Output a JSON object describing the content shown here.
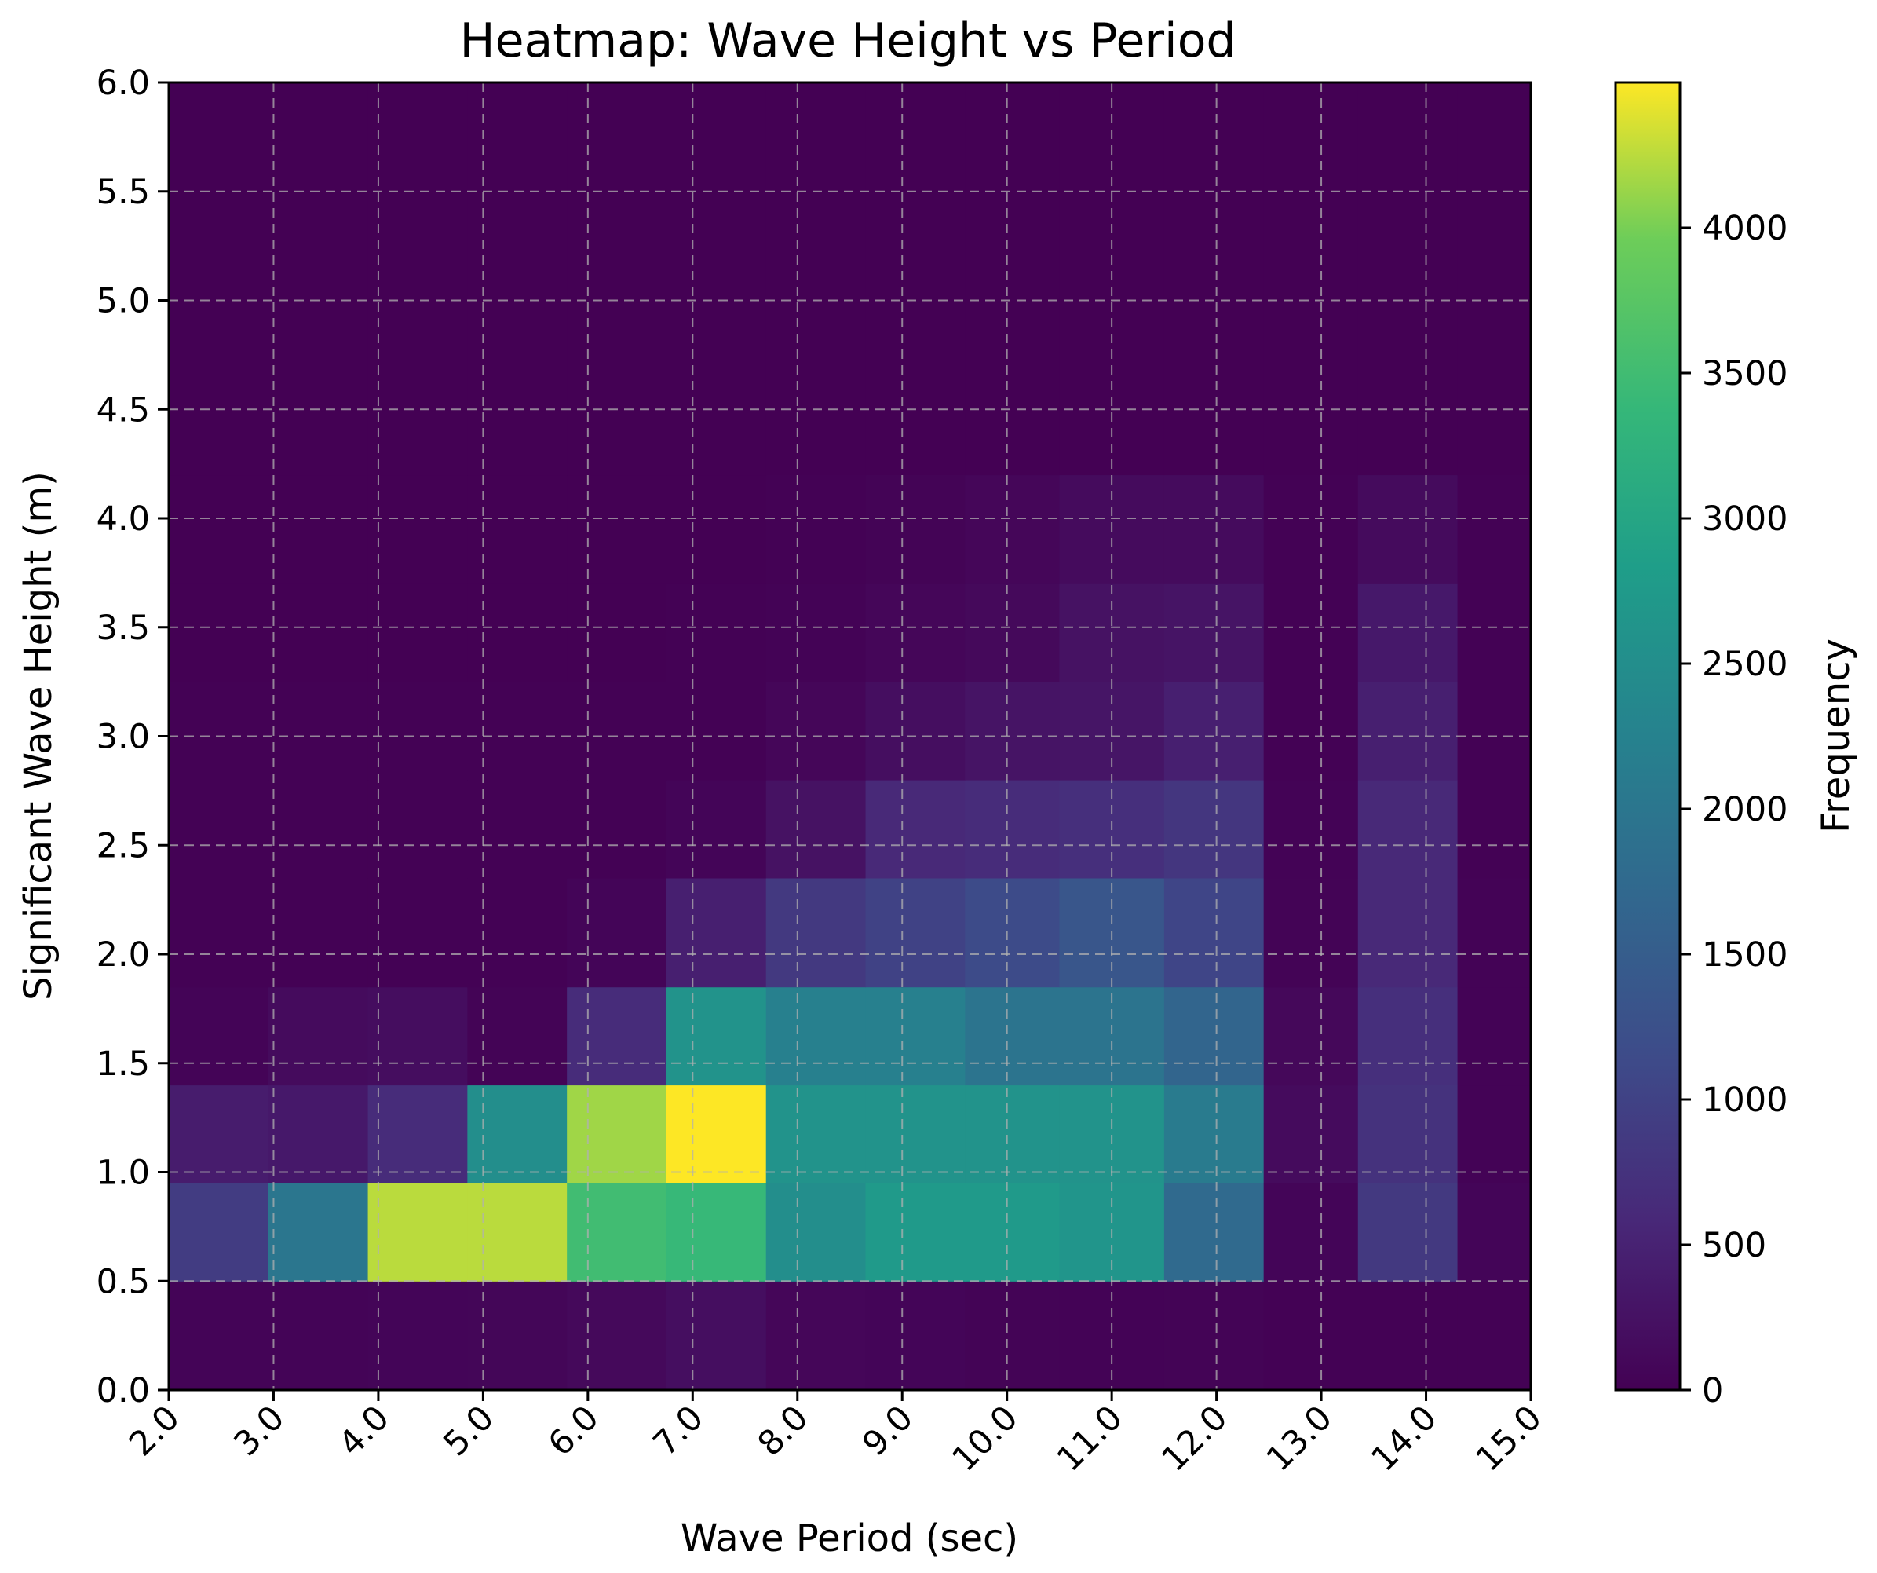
{
  "chart_data": {
    "type": "heatmap",
    "title": "Heatmap: Wave Height vs Period",
    "xlabel": "Wave Period (sec)",
    "ylabel": "Significant Wave Height (m)",
    "colorbar_label": "Frequency",
    "colormap": "viridis",
    "xlim": [
      2.0,
      15.0
    ],
    "ylim": [
      0.0,
      6.0
    ],
    "clim": [
      0,
      4500
    ],
    "grid": true,
    "x_ticks": [
      "2.0",
      "3.0",
      "4.0",
      "5.0",
      "6.0",
      "7.0",
      "8.0",
      "9.0",
      "10.0",
      "11.0",
      "12.0",
      "13.0",
      "14.0",
      "15.0"
    ],
    "y_ticks": [
      "0.0",
      "0.5",
      "1.0",
      "1.5",
      "2.0",
      "2.5",
      "3.0",
      "3.5",
      "4.0",
      "4.5",
      "5.0",
      "5.5",
      "6.0"
    ],
    "colorbar_ticks": [
      "0",
      "500",
      "1000",
      "1500",
      "2000",
      "2500",
      "3000",
      "3500",
      "4000"
    ],
    "x_bin_edges": [
      2.0,
      2.95,
      3.9,
      4.85,
      5.8,
      6.75,
      7.7,
      8.65,
      9.6,
      10.5,
      11.5,
      12.45,
      13.35,
      14.3,
      15.0
    ],
    "y_bin_edges": [
      0.0,
      0.5,
      0.95,
      1.4,
      1.85,
      2.35,
      2.8,
      3.25,
      3.7,
      4.2,
      6.0
    ],
    "values": [
      [
        50,
        50,
        60,
        70,
        120,
        200,
        80,
        60,
        40,
        30,
        40,
        10,
        10,
        10
      ],
      [
        900,
        2000,
        4250,
        4250,
        3500,
        3400,
        2500,
        2750,
        2750,
        2650,
        1750,
        60,
        850,
        60
      ],
      [
        400,
        350,
        650,
        2500,
        4150,
        4500,
        2600,
        2600,
        2600,
        2600,
        2100,
        150,
        750,
        30
      ],
      [
        50,
        150,
        180,
        40,
        650,
        2600,
        2200,
        2200,
        1950,
        1950,
        1650,
        100,
        700,
        30
      ],
      [
        20,
        20,
        20,
        20,
        60,
        450,
        850,
        1000,
        1150,
        1350,
        1050,
        40,
        600,
        30
      ],
      [
        10,
        10,
        10,
        10,
        20,
        60,
        250,
        600,
        650,
        700,
        800,
        30,
        600,
        20
      ],
      [
        10,
        10,
        10,
        10,
        10,
        20,
        80,
        200,
        280,
        300,
        450,
        20,
        450,
        20
      ],
      [
        5,
        5,
        5,
        5,
        5,
        10,
        30,
        80,
        120,
        250,
        280,
        20,
        350,
        15
      ],
      [
        0,
        0,
        0,
        0,
        0,
        5,
        20,
        40,
        80,
        150,
        150,
        10,
        150,
        10
      ],
      [
        0,
        0,
        0,
        0,
        0,
        0,
        0,
        0,
        0,
        0,
        0,
        0,
        0,
        0
      ]
    ]
  }
}
